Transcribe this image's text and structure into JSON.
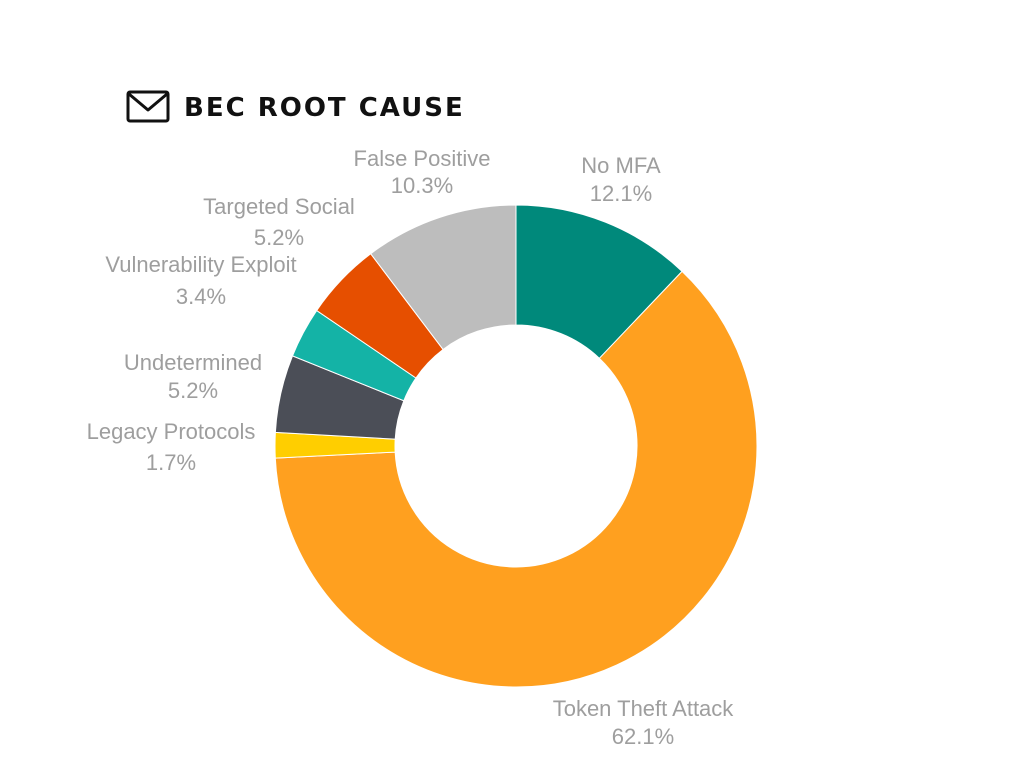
{
  "chart_data": {
    "type": "pie",
    "donut": true,
    "title": "BEC ROOT CAUSE",
    "title_icon": "envelope-icon",
    "slices": [
      {
        "name": "No MFA",
        "value": 12.1,
        "value_label": "12.1%",
        "color": "#00897b"
      },
      {
        "name": "Token Theft Attack",
        "value": 62.1,
        "value_label": "62.1%",
        "color": "#ffa01f"
      },
      {
        "name": "Legacy Protocols",
        "value": 1.7,
        "value_label": "1.7%",
        "color": "#ffce00"
      },
      {
        "name": "Undetermined",
        "value": 5.2,
        "value_label": "5.2%",
        "color": "#4b4e57"
      },
      {
        "name": "Vulnerability Exploit",
        "value": 3.4,
        "value_label": "3.4%",
        "color": "#14b3a6"
      },
      {
        "name": "Targeted Social",
        "value": 5.2,
        "value_label": "5.2%",
        "color": "#e64f00"
      },
      {
        "name": "False Positive",
        "value": 10.3,
        "value_label": "10.3%",
        "color": "#bdbdbd"
      }
    ],
    "start_angle": "12 o'clock",
    "direction": "clockwise"
  }
}
